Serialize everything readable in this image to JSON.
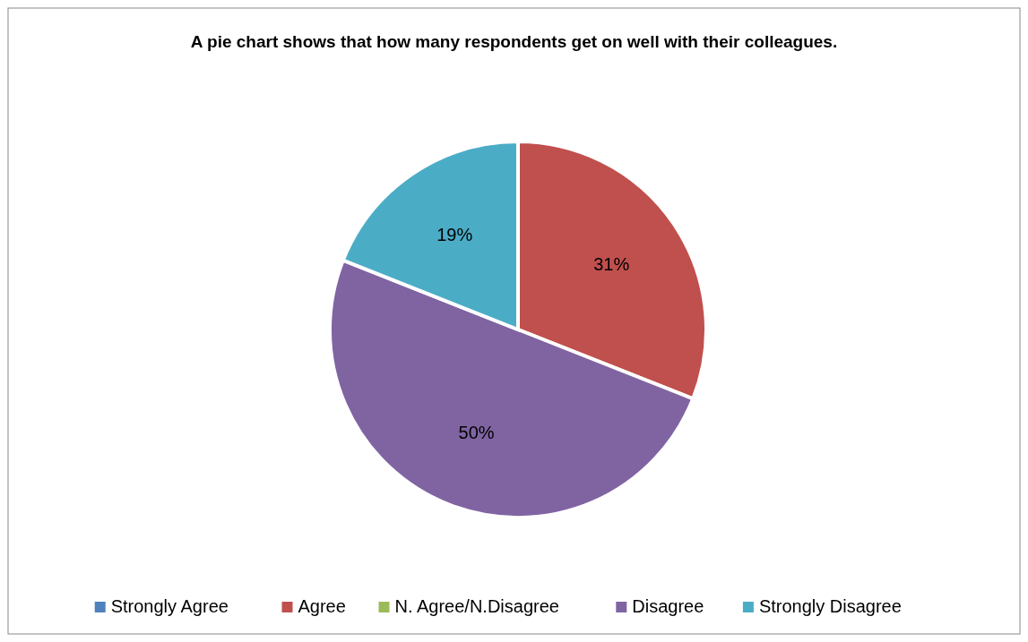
{
  "chart_data": {
    "type": "pie",
    "title": "A pie chart shows that how many respondents get on well with their colleagues.",
    "categories": [
      "Strongly Agree",
      "Agree",
      "N. Agree/N.Disagree",
      "Disagree",
      "Strongly Disagree"
    ],
    "values": [
      0,
      31,
      0,
      50,
      19
    ],
    "value_labels": [
      null,
      "31%",
      null,
      "50%",
      "19%"
    ],
    "colors": [
      "#4f81bd",
      "#c0504d",
      "#9bbb59",
      "#8064a2",
      "#4bacc6"
    ],
    "legend": "bottom"
  }
}
